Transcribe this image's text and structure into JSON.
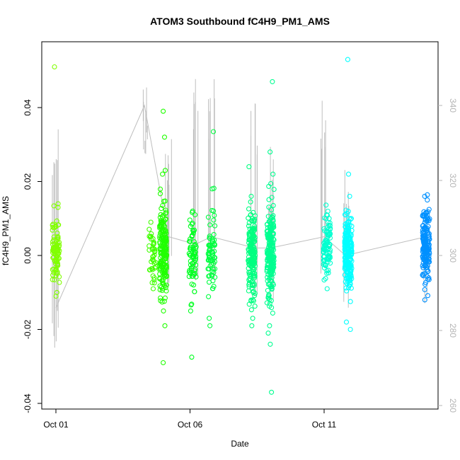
{
  "chart_data": {
    "type": "scatter",
    "title": "ATOM3 Southbound fC4H9_PM1_AMS",
    "xlabel": "Date",
    "ylabel": "fC4H9_PM1_AMS",
    "x_ticks": [
      "Oct 01",
      "Oct 06",
      "Oct 11"
    ],
    "ylim": [
      -0.04,
      0.055
    ],
    "y_ticks": [
      -0.04,
      -0.02,
      0.0,
      0.02,
      0.04
    ],
    "y_tick_labels": [
      "-0.04",
      "-0.02",
      "0.00",
      "0.02",
      "0.04"
    ],
    "y2_ticks": [
      260,
      280,
      300,
      320,
      340
    ],
    "grid": false,
    "point_colors": {
      "oct01": "#80ff00",
      "oct04": "#40ff00",
      "oct05": "#20ff00",
      "oct06": "#00ff20",
      "oct07": "#00ff40",
      "oct08": "#00ff80",
      "oct09": "#00ff90",
      "oct11": "#00ffd0",
      "oct12": "#00ffff",
      "oct15": "#0090ff"
    },
    "secondary_line_color": "#bebebe",
    "clusters": [
      {
        "day": 1.0,
        "color_key": "oct01",
        "n": 90,
        "mean": 0.0,
        "sd": 0.0045,
        "outliers": [
          0.051,
          0.014,
          0.013,
          -0.01,
          -0.011
        ]
      },
      {
        "day": 4.6,
        "color_key": "oct04",
        "n": 40,
        "mean": 0.0,
        "sd": 0.0045,
        "outliers": [
          0.009,
          -0.009
        ]
      },
      {
        "day": 5.0,
        "color_key": "oct05",
        "n": 180,
        "mean": 0.002,
        "sd": 0.006,
        "outliers": [
          0.039,
          0.032,
          0.023,
          0.022,
          -0.015,
          -0.019,
          -0.029
        ]
      },
      {
        "day": 6.1,
        "color_key": "oct06",
        "n": 70,
        "mean": 0.0,
        "sd": 0.005,
        "outliers": [
          0.012,
          0.011,
          -0.015,
          -0.0275
        ]
      },
      {
        "day": 6.8,
        "color_key": "oct07",
        "n": 70,
        "mean": 0.0,
        "sd": 0.006,
        "outliers": [
          0.0335,
          0.018,
          -0.017,
          -0.019
        ]
      },
      {
        "day": 8.3,
        "color_key": "oct08",
        "n": 170,
        "mean": 0.0,
        "sd": 0.006,
        "outliers": [
          0.024,
          0.016,
          -0.017,
          -0.019
        ]
      },
      {
        "day": 9.0,
        "color_key": "oct09",
        "n": 200,
        "mean": 0.001,
        "sd": 0.0065,
        "outliers": [
          0.047,
          0.028,
          0.022,
          -0.019,
          -0.021,
          -0.024,
          -0.037
        ]
      },
      {
        "day": 11.1,
        "color_key": "oct11",
        "n": 90,
        "mean": 0.002,
        "sd": 0.004,
        "outliers": [
          0.011,
          -0.009
        ]
      },
      {
        "day": 11.9,
        "color_key": "oct12",
        "n": 220,
        "mean": 0.001,
        "sd": 0.005,
        "outliers": [
          0.053,
          0.022,
          0.016,
          -0.018,
          -0.02
        ]
      },
      {
        "day": 14.8,
        "color_key": "oct15",
        "n": 170,
        "mean": 0.003,
        "sd": 0.005,
        "outliers": [
          0.016,
          0.015,
          -0.012
        ]
      }
    ],
    "secondary_series": [
      {
        "day": 1.0,
        "y2": 286,
        "top": 338
      },
      {
        "day": 4.3,
        "y2": 340,
        "top": 347
      },
      {
        "day": 5.2,
        "y2": 305,
        "top": 332
      },
      {
        "day": 6.2,
        "y2": 303,
        "top": 350
      },
      {
        "day": 6.8,
        "y2": 305,
        "top": 349
      },
      {
        "day": 8.4,
        "y2": 302,
        "top": 343
      },
      {
        "day": 9.0,
        "y2": 302,
        "top": 329
      },
      {
        "day": 11.0,
        "y2": 305,
        "top": 345
      },
      {
        "day": 11.8,
        "y2": 300,
        "top": 327
      },
      {
        "day": 14.8,
        "y2": 305,
        "top": 305
      }
    ]
  }
}
